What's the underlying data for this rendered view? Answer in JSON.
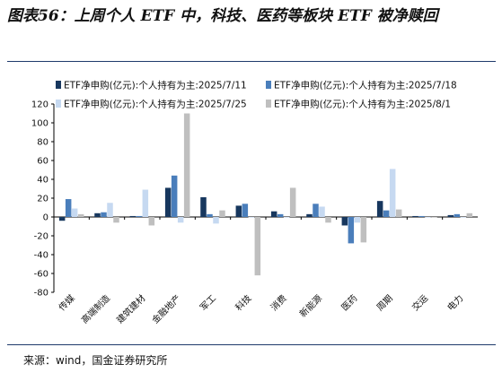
{
  "title": "图表56：上周个人 ETF 中，科技、医药等板块 ETF 被净赎回",
  "source": "来源：wind，国金证券研究所",
  "chart_data": {
    "type": "bar",
    "title": "",
    "xlabel": "",
    "ylabel": "",
    "ylim": [
      -80,
      120
    ],
    "yticks": [
      -80,
      -60,
      -40,
      -20,
      0,
      20,
      40,
      60,
      80,
      100,
      120
    ],
    "grid": false,
    "legend_position": "top",
    "categories": [
      "传媒",
      "高端制造",
      "建筑建材",
      "金融地产",
      "军工",
      "科技",
      "消费",
      "新能源",
      "医药",
      "周期",
      "交运",
      "电力"
    ],
    "series": [
      {
        "name": "ETF净申购(亿元):个人持有为主:2025/7/11",
        "color": "#17375e",
        "values": [
          -4,
          4,
          1,
          31,
          21,
          12,
          6,
          3,
          -9,
          17,
          1,
          2
        ]
      },
      {
        "name": "ETF净申购(亿元):个人持有为主:2025/7/18",
        "color": "#4a7ebb",
        "values": [
          19,
          5,
          1,
          44,
          3,
          14,
          3,
          14,
          -28,
          7,
          1,
          3
        ]
      },
      {
        "name": "ETF净申购(亿元):个人持有为主:2025/7/25",
        "color": "#c6d9f1",
        "values": [
          9,
          15,
          29,
          -6,
          -7,
          0,
          0,
          11,
          -6,
          51,
          0,
          0
        ]
      },
      {
        "name": "ETF净申购(亿元):个人持有为主:2025/8/1",
        "color": "#bfbfbf",
        "values": [
          3,
          -6,
          -9,
          110,
          7,
          -62,
          31,
          -6,
          -27,
          8,
          0,
          4
        ]
      }
    ]
  }
}
